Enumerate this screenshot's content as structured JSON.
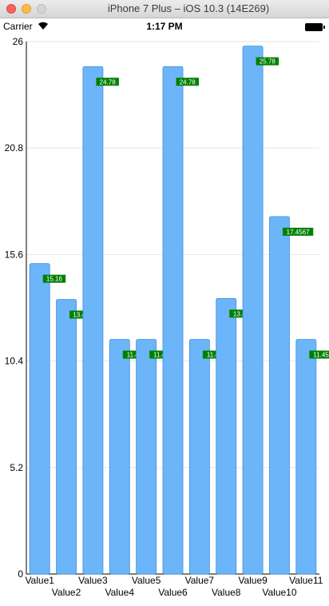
{
  "window": {
    "title": "iPhone 7 Plus – iOS 10.3 (14E269)"
  },
  "status_bar": {
    "carrier": "Carrier",
    "time": "1:17 PM"
  },
  "chart_data": {
    "type": "bar",
    "title": "",
    "xlabel": "",
    "ylabel": "",
    "ylim": [
      0,
      26
    ],
    "y_ticks": [
      "0",
      "5.2",
      "10.4",
      "15.6",
      "20.8",
      "26"
    ],
    "grid": true,
    "legend": "none",
    "categories": [
      "Value1",
      "Value2",
      "Value3",
      "Value4",
      "Value5",
      "Value6",
      "Value7",
      "Value8",
      "Value9",
      "Value10",
      "Value11"
    ],
    "values": [
      15.16,
      13.41,
      24.78,
      11.4567,
      11.4569,
      24.78,
      11.4567,
      13.4569,
      25.78,
      17.4567,
      11.4569
    ],
    "value_labels": [
      "15.16",
      "13.41",
      "24.78",
      "11.4567",
      "11.4569",
      "24.78",
      "11.4567",
      "13.4569",
      "25.78",
      "17.4567",
      "11.4569"
    ],
    "colors": {
      "bar": "#6cb5f9",
      "bar_border": "#3f8fe0",
      "label_bg": "#008000",
      "label_text": "#ffffff",
      "grid": "#e6e6e6",
      "axis": "#000000"
    }
  }
}
